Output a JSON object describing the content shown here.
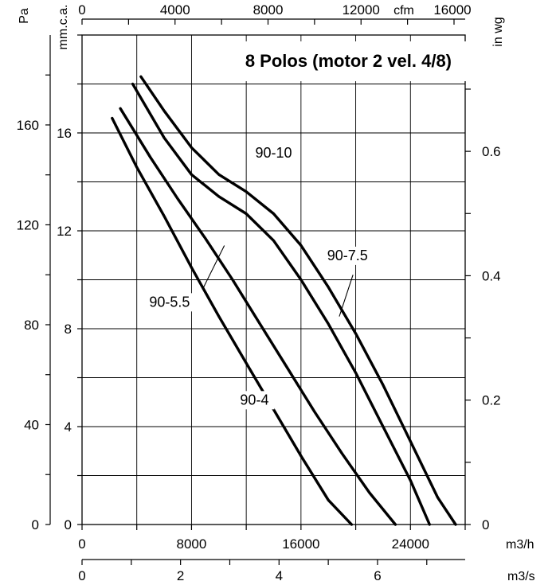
{
  "chart_data": {
    "type": "line",
    "title": "8 Polos (motor 2 vel. 4/8)",
    "grid": true,
    "axes": {
      "x_main": {
        "unit": "m3/h",
        "range": [
          0,
          28000
        ],
        "ticks": [
          0,
          8000,
          16000,
          24000
        ],
        "tick_labels": [
          "0",
          "8000",
          "16000",
          "24000"
        ]
      },
      "x_second": {
        "unit": "m3/s",
        "range": [
          0,
          7.78
        ],
        "ticks": [
          0,
          2,
          4,
          6
        ],
        "tick_labels": [
          "0",
          "2",
          "4",
          "6"
        ]
      },
      "x_top": {
        "unit": "cfm",
        "range": [
          0,
          16480
        ],
        "ticks": [
          0,
          4000,
          8000,
          12000,
          16000
        ],
        "tick_labels": [
          "0",
          "4000",
          "8000",
          "12000",
          "16000"
        ]
      },
      "y_left_outer": {
        "unit": "Pa",
        "range": [
          0,
          196
        ],
        "ticks": [
          0,
          40,
          80,
          120,
          160
        ],
        "tick_labels": [
          "0",
          "40",
          "80",
          "120",
          "160"
        ]
      },
      "y_left_inner": {
        "unit": "mm.c.a.",
        "range": [
          0,
          20
        ],
        "ticks": [
          0,
          4,
          8,
          12,
          16
        ],
        "tick_labels": [
          "0",
          "4",
          "8",
          "12",
          "16"
        ]
      },
      "y_right": {
        "unit": "in wg",
        "range": [
          0,
          0.787
        ],
        "ticks": [
          0,
          0.2,
          0.4,
          0.6
        ],
        "tick_labels": [
          "0",
          "0.2",
          "0.4",
          "0.6"
        ]
      }
    },
    "series": [
      {
        "name": "90-4",
        "x_unit": "m3/h",
        "y_unit": "mm.c.a.",
        "points": [
          [
            2200,
            16.6
          ],
          [
            4000,
            14.6
          ],
          [
            6000,
            12.6
          ],
          [
            8000,
            10.5
          ],
          [
            10000,
            8.5
          ],
          [
            12000,
            6.6
          ],
          [
            14000,
            4.7
          ],
          [
            16000,
            2.8
          ],
          [
            18000,
            1.0
          ],
          [
            19700,
            0
          ]
        ]
      },
      {
        "name": "90-5.5",
        "x_unit": "m3/h",
        "y_unit": "mm.c.a.",
        "points": [
          [
            2800,
            17.0
          ],
          [
            5000,
            15.0
          ],
          [
            7000,
            13.3
          ],
          [
            9000,
            11.7
          ],
          [
            11000,
            10.0
          ],
          [
            13000,
            8.2
          ],
          [
            15000,
            6.4
          ],
          [
            17000,
            4.6
          ],
          [
            19000,
            2.9
          ],
          [
            21000,
            1.3
          ],
          [
            22900,
            0
          ]
        ]
      },
      {
        "name": "90-7.5",
        "x_unit": "m3/h",
        "y_unit": "mm.c.a.",
        "points": [
          [
            3700,
            18.0
          ],
          [
            6000,
            15.8
          ],
          [
            8000,
            14.3
          ],
          [
            10000,
            13.4
          ],
          [
            12000,
            12.7
          ],
          [
            14000,
            11.6
          ],
          [
            16000,
            10.0
          ],
          [
            18000,
            8.2
          ],
          [
            20000,
            6.2
          ],
          [
            22000,
            4.0
          ],
          [
            24000,
            1.8
          ],
          [
            25400,
            0
          ]
        ]
      },
      {
        "name": "90-10",
        "x_unit": "m3/h",
        "y_unit": "mm.c.a.",
        "points": [
          [
            4300,
            18.3
          ],
          [
            6000,
            16.9
          ],
          [
            8000,
            15.4
          ],
          [
            10000,
            14.3
          ],
          [
            12000,
            13.6
          ],
          [
            14000,
            12.7
          ],
          [
            16000,
            11.4
          ],
          [
            18000,
            9.7
          ],
          [
            20000,
            7.8
          ],
          [
            22000,
            5.7
          ],
          [
            24000,
            3.4
          ],
          [
            26000,
            1.1
          ],
          [
            27300,
            0
          ]
        ]
      }
    ],
    "annotations": [
      {
        "text": "90-10",
        "x": 14000,
        "y": 15.0
      },
      {
        "text": "90-7.5",
        "x": 19400,
        "y": 10.8
      },
      {
        "text": "90-5.5",
        "x": 6400,
        "y": 8.9
      },
      {
        "text": "90-4",
        "x": 12600,
        "y": 4.9
      }
    ],
    "leaders": [
      {
        "series": "90-7.5",
        "from": [
          19800,
          10.2
        ],
        "to": [
          18800,
          8.5
        ]
      },
      {
        "series": "90-5.5",
        "from": [
          8800,
          9.6
        ],
        "to": [
          10400,
          11.4
        ]
      }
    ]
  }
}
